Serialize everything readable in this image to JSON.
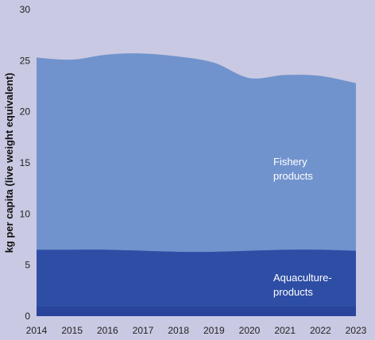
{
  "chart_data": {
    "type": "area",
    "stacked": true,
    "ylabel": "kg per capita (live weight equivalent)",
    "xlabel": "",
    "ylim": [
      0,
      30
    ],
    "yticks": [
      0,
      5,
      10,
      15,
      20,
      25,
      30
    ],
    "x": [
      2014,
      2015,
      2016,
      2017,
      2018,
      2019,
      2020,
      2021,
      2022,
      2023
    ],
    "series": [
      {
        "name": "Aquaculture-products",
        "label_lines": [
          "Aquaculture-",
          "products"
        ],
        "color": "#2e4ea6",
        "values": [
          6.5,
          6.5,
          6.5,
          6.4,
          6.3,
          6.3,
          6.4,
          6.5,
          6.5,
          6.4
        ]
      },
      {
        "name": "Fishery products",
        "label_lines": [
          "Fishery",
          "products"
        ],
        "color": "#7193cd",
        "values": [
          18.8,
          18.6,
          19.1,
          19.3,
          19.1,
          18.5,
          16.9,
          17.1,
          17.0,
          16.4
        ]
      }
    ],
    "grid": false,
    "legend": "inline labels"
  },
  "colors": {
    "background": "#c9c9e3",
    "aquaculture": "#2e4ea6",
    "fishery": "#7193cd",
    "bottom_band": "#29449a"
  }
}
